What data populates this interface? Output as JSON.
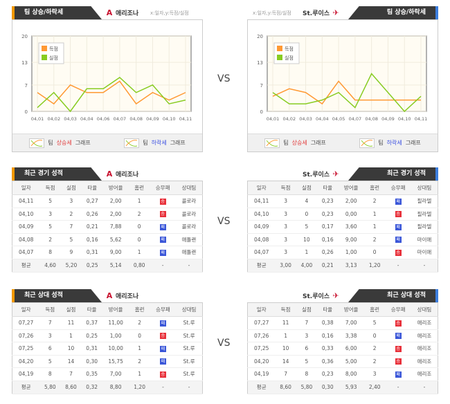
{
  "vs_label": "VS",
  "colors": {
    "score": "#ff9933",
    "lost": "#88cc22",
    "win": "#e8303a",
    "loss": "#3a56d8",
    "accent_left": "#f39800",
    "accent_right": "#3b7ddd"
  },
  "trend": {
    "tab_title": "팀 상승/하락세",
    "axis_note": "x:일자,y:득점/실점",
    "legend_bar": {
      "prefix": "팀",
      "up": "상승세",
      "down": "하락세",
      "suffix": "그래프"
    },
    "left_team": "애리조나",
    "right_team": "St.루이스"
  },
  "chart_data": [
    {
      "type": "line",
      "team": "애리조나",
      "yticks": [
        0,
        7,
        13,
        20
      ],
      "ylim": [
        0,
        20
      ],
      "grid": true,
      "legend": "top-left",
      "categories": [
        "04,01",
        "04,02",
        "04,03",
        "04,04",
        "04,06",
        "04,07",
        "04,08",
        "04,09",
        "04,10",
        "04,11"
      ],
      "series": [
        {
          "name": "득점",
          "color": "#ff9933",
          "values": [
            5,
            2,
            7,
            5,
            5,
            8,
            2,
            5,
            3,
            5
          ]
        },
        {
          "name": "실점",
          "color": "#88cc22",
          "values": [
            1,
            5,
            0,
            6,
            6,
            9,
            5,
            7,
            2,
            3
          ]
        }
      ]
    },
    {
      "type": "line",
      "team": "St.루이스",
      "yticks": [
        0,
        7,
        13,
        20
      ],
      "ylim": [
        0,
        20
      ],
      "grid": true,
      "legend": "top-left",
      "categories": [
        "04,01",
        "04,02",
        "04,03",
        "04,04",
        "04,05",
        "04,07",
        "04,08",
        "04,09",
        "04,10",
        "04,11"
      ],
      "series": [
        {
          "name": "득점",
          "color": "#ff9933",
          "values": [
            4,
            6,
            5,
            2,
            8,
            3,
            3,
            3,
            3,
            3
          ]
        },
        {
          "name": "실점",
          "color": "#88cc22",
          "values": [
            5,
            2,
            2,
            3,
            5,
            1,
            10,
            5,
            0,
            4
          ]
        }
      ]
    }
  ],
  "columns": [
    "일자",
    "득점",
    "실점",
    "타율",
    "방어율",
    "홈런",
    "승무패",
    "상대팀"
  ],
  "recent": {
    "title": "최근 경기 성적",
    "left": {
      "team": "애리조나",
      "rows": [
        [
          "04,11",
          "5",
          "3",
          "0,27",
          "2,00",
          "1",
          "승",
          "콜로라"
        ],
        [
          "04,10",
          "3",
          "2",
          "0,26",
          "2,00",
          "2",
          "승",
          "콜로라"
        ],
        [
          "04,09",
          "5",
          "7",
          "0,21",
          "7,88",
          "0",
          "패",
          "콜로라"
        ],
        [
          "04,08",
          "2",
          "5",
          "0,16",
          "5,62",
          "0",
          "패",
          "애틀랜"
        ],
        [
          "04,07",
          "8",
          "9",
          "0,31",
          "9,00",
          "1",
          "패",
          "애틀랜"
        ]
      ],
      "avg": [
        "평균",
        "4,60",
        "5,20",
        "0,25",
        "5,14",
        "0,80",
        "-",
        "-"
      ]
    },
    "right": {
      "team": "St.루이스",
      "rows": [
        [
          "04,11",
          "3",
          "4",
          "0,23",
          "2,00",
          "2",
          "패",
          "필라델"
        ],
        [
          "04,10",
          "3",
          "0",
          "0,23",
          "0,00",
          "1",
          "승",
          "필라델"
        ],
        [
          "04,09",
          "3",
          "5",
          "0,17",
          "3,60",
          "1",
          "패",
          "필라델"
        ],
        [
          "04,08",
          "3",
          "10",
          "0,16",
          "9,00",
          "2",
          "패",
          "마이애"
        ],
        [
          "04,07",
          "3",
          "1",
          "0,26",
          "1,00",
          "0",
          "승",
          "마이애"
        ]
      ],
      "avg": [
        "평균",
        "3,00",
        "4,00",
        "0,21",
        "3,13",
        "1,20",
        "-",
        "-"
      ]
    }
  },
  "h2h": {
    "title": "최근 상대 성적",
    "left": {
      "team": "애리조나",
      "rows": [
        [
          "07,27",
          "7",
          "11",
          "0,37",
          "11,00",
          "2",
          "패",
          "St.루"
        ],
        [
          "07,26",
          "3",
          "1",
          "0,25",
          "1,00",
          "0",
          "승",
          "St.루"
        ],
        [
          "07,25",
          "6",
          "10",
          "0,31",
          "10,00",
          "1",
          "패",
          "St.루"
        ],
        [
          "04,20",
          "5",
          "14",
          "0,30",
          "15,75",
          "2",
          "패",
          "St.루"
        ],
        [
          "04,19",
          "8",
          "7",
          "0,35",
          "7,00",
          "1",
          "승",
          "St.루"
        ]
      ],
      "avg": [
        "평균",
        "5,80",
        "8,60",
        "0,32",
        "8,80",
        "1,20",
        "-",
        "-"
      ]
    },
    "right": {
      "team": "St.루이스",
      "rows": [
        [
          "07,27",
          "11",
          "7",
          "0,38",
          "7,00",
          "5",
          "승",
          "애리조"
        ],
        [
          "07,26",
          "1",
          "3",
          "0,16",
          "3,38",
          "0",
          "패",
          "애리조"
        ],
        [
          "07,25",
          "10",
          "6",
          "0,33",
          "6,00",
          "2",
          "승",
          "애리조"
        ],
        [
          "04,20",
          "14",
          "5",
          "0,36",
          "5,00",
          "2",
          "승",
          "애리조"
        ],
        [
          "04,19",
          "7",
          "8",
          "0,23",
          "8,00",
          "3",
          "패",
          "애리조"
        ]
      ],
      "avg": [
        "평균",
        "8,60",
        "5,80",
        "0,30",
        "5,93",
        "2,40",
        "-",
        "-"
      ]
    }
  }
}
